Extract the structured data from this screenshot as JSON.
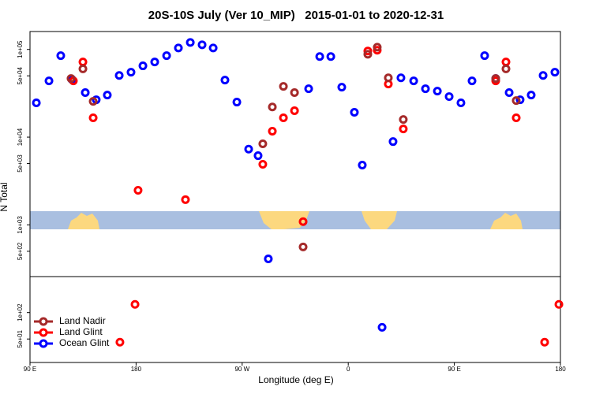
{
  "chart_data": {
    "type": "scatter",
    "title": "20S-10S July (Ver 10_MIP)   2015-01-01 to 2020-12-31",
    "x_label": "Longitude (deg E)",
    "y_label": "N Total",
    "log_y": true,
    "legend": "bottom-left",
    "xlim": [
      90,
      540
    ],
    "xticks": [
      {
        "value": 90,
        "label": "90 E"
      },
      180,
      {
        "value": 270,
        "label": "90 W"
      },
      {
        "value": 360,
        "label": "0"
      },
      {
        "value": 450,
        "label": "90 E"
      },
      {
        "value": 540,
        "label": "180"
      }
    ],
    "ylim": [
      27,
      160000
    ],
    "yticks": [
      {
        "value": 50,
        "label": "5e+01"
      },
      {
        "value": 100,
        "label": "1e+02"
      },
      {
        "value": 500,
        "label": "5e+02"
      },
      {
        "value": 1000,
        "label": "1e+03"
      },
      {
        "value": 5000,
        "label": "5e+03"
      },
      {
        "value": 10000,
        "label": "1e+04"
      },
      {
        "value": 50000,
        "label": "5e+04"
      },
      {
        "value": 100000,
        "label": "1e+05"
      }
    ],
    "series": [
      {
        "name": "Land Nadir",
        "color": "#a52a2a",
        "x": [
          124.8,
          134.9,
          143.6,
          287.5,
          295.6,
          305.0,
          314.4,
          321.7,
          376.6,
          384.6,
          394.0,
          406.7,
          485.1,
          493.8,
          502.5
        ],
        "values": [
          46600,
          60000,
          25600,
          8400,
          22100,
          37900,
          32200,
          560,
          88000,
          106000,
          47500,
          15900,
          46600,
          60000,
          26100
        ]
      },
      {
        "name": "Land Glint",
        "color": "#ff0000",
        "x": [
          126.8,
          134.9,
          143.6,
          166.3,
          179.1,
          181.7,
          221.9,
          287.5,
          295.6,
          305.0,
          314.4,
          321.7,
          376.6,
          384.6,
          394.0,
          406.7,
          485.1,
          493.8,
          502.5,
          526.6,
          538.7
        ],
        "values": [
          43800,
          72000,
          16600,
          46,
          124,
          2480,
          1940,
          4900,
          11700,
          16600,
          20000,
          1090,
          96000,
          98000,
          40300,
          12400,
          43800,
          72000,
          16600,
          46,
          124
        ]
      },
      {
        "name": "Ocean Glint",
        "color": "#0000ff",
        "x": [
          95.4,
          106.1,
          116.1,
          125.5,
          136.9,
          146.2,
          155.6,
          165.7,
          175.7,
          185.8,
          195.8,
          205.9,
          215.9,
          226.0,
          236.0,
          245.4,
          255.4,
          265.5,
          275.5,
          283.5,
          292.2,
          326.4,
          335.8,
          345.2,
          354.5,
          365.2,
          371.9,
          388.7,
          398.0,
          404.7,
          415.5,
          425.5,
          435.6,
          445.6,
          455.6,
          465.0,
          475.7,
          485.1,
          496.5,
          505.8,
          515.2,
          525.3,
          535.3
        ],
        "values": [
          24600,
          43800,
          85000,
          45600,
          32200,
          26700,
          30200,
          50500,
          55000,
          65000,
          72000,
          85000,
          104000,
          120000,
          113000,
          104000,
          44700,
          25100,
          7300,
          6150,
          410,
          35600,
          83000,
          83000,
          37100,
          19200,
          4800,
          68,
          8900,
          47500,
          43800,
          35600,
          33500,
          29000,
          24600,
          43800,
          85000,
          46600,
          32200,
          26700,
          30200,
          50500,
          55000
        ]
      }
    ]
  }
}
